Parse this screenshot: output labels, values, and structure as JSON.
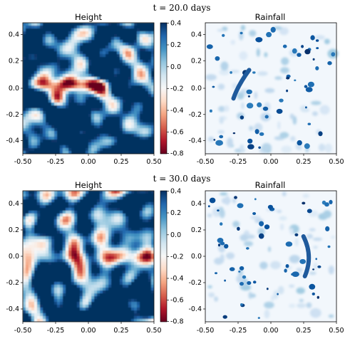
{
  "colors": {
    "height_colormap": [
      "#67001f",
      "#b2182b",
      "#d6604d",
      "#f4a582",
      "#fddbc7",
      "#f7f7f7",
      "#d1e5f0",
      "#92c5de",
      "#4393c3",
      "#2166ac",
      "#053061"
    ],
    "rainfall_colormap": [
      "#f7fbff",
      "#deebf7",
      "#c6dbef",
      "#9ecae1",
      "#6baed6",
      "#4292c6",
      "#2171b5",
      "#08519c",
      "#08306b"
    ]
  },
  "chart_data": [
    {
      "type": "heatmap",
      "suptitle": "t = 20.0 days",
      "panels": [
        {
          "title": "Height",
          "field": "height",
          "xlim": [
            -0.5,
            0.5
          ],
          "ylim": [
            -0.5,
            0.5
          ],
          "xticks": [
            "-0.50",
            "-0.25",
            "0.00",
            "0.25",
            "0.50"
          ],
          "yticks": [
            "0.4",
            "0.2",
            "0.0",
            "-0.2",
            "-0.4"
          ],
          "colorbar": {
            "range": [
              -0.8,
              0.4
            ],
            "ticks": [
              "0.4",
              "0.2",
              "0.0",
              "-0.2",
              "-0.4",
              "-0.6",
              "-0.8"
            ],
            "colormap": "RdBu"
          },
          "features": [
            {
              "shape": "band",
              "x": [
                -0.45,
                0.15
              ],
              "y": [
                0.0,
                0.05
              ],
              "value": -0.55
            },
            {
              "shape": "blob",
              "x": -0.22,
              "y": -0.05,
              "value": -0.75
            }
          ]
        },
        {
          "title": "Rainfall",
          "field": "rainfall",
          "xlim": [
            -0.5,
            0.5
          ],
          "ylim": [
            -0.5,
            0.5
          ],
          "xticks": [
            "-0.50",
            "-0.25",
            "0.00",
            "0.25",
            "0.50"
          ],
          "yticks": [
            "0.4",
            "0.2",
            "0.0",
            "-0.2",
            "-0.4"
          ],
          "colormap": "Blues",
          "features": [
            {
              "shape": "arc",
              "x": -0.22,
              "y": [
                -0.07,
                0.1
              ],
              "value": 1.0
            }
          ]
        }
      ]
    },
    {
      "type": "heatmap",
      "suptitle": "t = 30.0 days",
      "panels": [
        {
          "title": "Height",
          "field": "height",
          "xlim": [
            -0.5,
            0.5
          ],
          "ylim": [
            -0.5,
            0.5
          ],
          "xticks": [
            "-0.50",
            "-0.25",
            "0.00",
            "0.25",
            "0.50"
          ],
          "yticks": [
            "0.4",
            "0.2",
            "0.0",
            "-0.2",
            "-0.4"
          ],
          "colorbar": {
            "range": [
              -0.8,
              0.4
            ],
            "ticks": [
              "0.4",
              "0.2",
              "0.0",
              "-0.2",
              "-0.4",
              "-0.6",
              "-0.8"
            ],
            "colormap": "RdBu"
          },
          "features": [
            {
              "shape": "band",
              "x": [
                -0.5,
                0.5
              ],
              "y": [
                -0.05,
                0.05
              ],
              "value": -0.6
            },
            {
              "shape": "blob",
              "x": 0.4,
              "y": 0.0,
              "value": -0.8
            }
          ]
        },
        {
          "title": "Rainfall",
          "field": "rainfall",
          "xlim": [
            -0.5,
            0.5
          ],
          "ylim": [
            -0.5,
            0.5
          ],
          "xticks": [
            "-0.50",
            "-0.25",
            "0.00",
            "0.25",
            "0.50"
          ],
          "yticks": [
            "0.4",
            "0.2",
            "0.0",
            "-0.2",
            "-0.4"
          ],
          "colormap": "Blues",
          "features": [
            {
              "shape": "arc",
              "x": 0.27,
              "y": [
                -0.15,
                0.15
              ],
              "value": 1.0
            }
          ]
        }
      ]
    }
  ]
}
